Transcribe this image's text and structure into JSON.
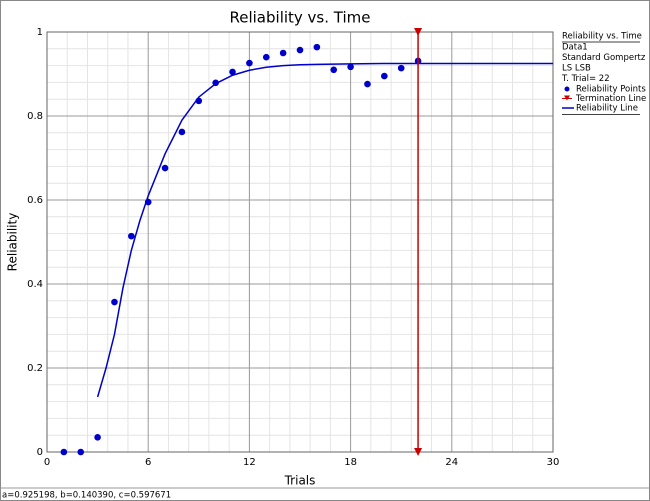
{
  "chart_data": {
    "type": "scatter",
    "title": "Reliability vs. Time",
    "x_label": "Trials",
    "y_label": "Reliability",
    "xlim": [
      0,
      30
    ],
    "xticks": [
      0,
      6,
      12,
      18,
      24,
      30
    ],
    "ylim": [
      0,
      1
    ],
    "yticks": [
      0,
      0.2,
      0.4,
      0.6,
      0.8,
      1
    ],
    "grid": true,
    "minor_divisions": 5,
    "legend_title": "Reliability vs. Time",
    "legend_info": [
      "Data1",
      "Standard Gompertz",
      "LS LSB",
      "T. Trial= 22"
    ],
    "legend_position": "right",
    "series": [
      {
        "name": "Reliability Points",
        "kind": "scatter",
        "color": "#0000cc",
        "x": [
          1,
          2,
          3,
          4,
          5,
          6,
          7,
          8,
          9,
          10,
          11,
          12,
          13,
          14,
          15,
          16,
          17,
          18,
          19,
          20,
          21,
          22
        ],
        "values": [
          0,
          0,
          0.035,
          0.357,
          0.514,
          0.595,
          0.676,
          0.762,
          0.836,
          0.879,
          0.905,
          0.926,
          0.94,
          0.95,
          0.957,
          0.964,
          0.91,
          0.917,
          0.876,
          0.895,
          0.914,
          0.931
        ]
      },
      {
        "name": "Termination Line",
        "kind": "vline",
        "color": "#cc0000",
        "x": [
          22
        ]
      },
      {
        "name": "Reliability Line",
        "kind": "line",
        "color": "#0000cc",
        "x": [
          3,
          3.5,
          4,
          4.5,
          5,
          5.5,
          6,
          6.5,
          7,
          7.5,
          8,
          9,
          10,
          11,
          12,
          13,
          14,
          15,
          16,
          18,
          20,
          22,
          25,
          30
        ],
        "values": [
          0.131,
          0.2,
          0.28,
          0.39,
          0.48,
          0.55,
          0.61,
          0.66,
          0.71,
          0.75,
          0.79,
          0.845,
          0.877,
          0.897,
          0.909,
          0.916,
          0.92,
          0.922,
          0.923,
          0.924,
          0.925,
          0.925,
          0.925,
          0.925
        ]
      }
    ],
    "status": "a=0.925198, b=0.140390, c=0.597671"
  }
}
